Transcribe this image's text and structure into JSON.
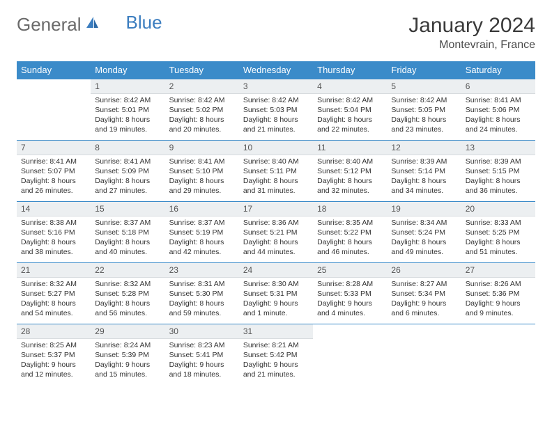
{
  "brand": {
    "general": "General",
    "blue": "Blue"
  },
  "title": "January 2024",
  "subtitle": "Montevrain, France",
  "colors": {
    "header_bg": "#3b8bc9",
    "header_text": "#ffffff",
    "daynum_bg": "#eceff1",
    "border": "#3b8bc9",
    "logo_blue": "#3b7dbf",
    "title_color": "#3a3a3a"
  },
  "day_headers": [
    "Sunday",
    "Monday",
    "Tuesday",
    "Wednesday",
    "Thursday",
    "Friday",
    "Saturday"
  ],
  "weeks": [
    [
      null,
      {
        "n": "1",
        "sr": "Sunrise: 8:42 AM",
        "ss": "Sunset: 5:01 PM",
        "d1": "Daylight: 8 hours",
        "d2": "and 19 minutes."
      },
      {
        "n": "2",
        "sr": "Sunrise: 8:42 AM",
        "ss": "Sunset: 5:02 PM",
        "d1": "Daylight: 8 hours",
        "d2": "and 20 minutes."
      },
      {
        "n": "3",
        "sr": "Sunrise: 8:42 AM",
        "ss": "Sunset: 5:03 PM",
        "d1": "Daylight: 8 hours",
        "d2": "and 21 minutes."
      },
      {
        "n": "4",
        "sr": "Sunrise: 8:42 AM",
        "ss": "Sunset: 5:04 PM",
        "d1": "Daylight: 8 hours",
        "d2": "and 22 minutes."
      },
      {
        "n": "5",
        "sr": "Sunrise: 8:42 AM",
        "ss": "Sunset: 5:05 PM",
        "d1": "Daylight: 8 hours",
        "d2": "and 23 minutes."
      },
      {
        "n": "6",
        "sr": "Sunrise: 8:41 AM",
        "ss": "Sunset: 5:06 PM",
        "d1": "Daylight: 8 hours",
        "d2": "and 24 minutes."
      }
    ],
    [
      {
        "n": "7",
        "sr": "Sunrise: 8:41 AM",
        "ss": "Sunset: 5:07 PM",
        "d1": "Daylight: 8 hours",
        "d2": "and 26 minutes."
      },
      {
        "n": "8",
        "sr": "Sunrise: 8:41 AM",
        "ss": "Sunset: 5:09 PM",
        "d1": "Daylight: 8 hours",
        "d2": "and 27 minutes."
      },
      {
        "n": "9",
        "sr": "Sunrise: 8:41 AM",
        "ss": "Sunset: 5:10 PM",
        "d1": "Daylight: 8 hours",
        "d2": "and 29 minutes."
      },
      {
        "n": "10",
        "sr": "Sunrise: 8:40 AM",
        "ss": "Sunset: 5:11 PM",
        "d1": "Daylight: 8 hours",
        "d2": "and 31 minutes."
      },
      {
        "n": "11",
        "sr": "Sunrise: 8:40 AM",
        "ss": "Sunset: 5:12 PM",
        "d1": "Daylight: 8 hours",
        "d2": "and 32 minutes."
      },
      {
        "n": "12",
        "sr": "Sunrise: 8:39 AM",
        "ss": "Sunset: 5:14 PM",
        "d1": "Daylight: 8 hours",
        "d2": "and 34 minutes."
      },
      {
        "n": "13",
        "sr": "Sunrise: 8:39 AM",
        "ss": "Sunset: 5:15 PM",
        "d1": "Daylight: 8 hours",
        "d2": "and 36 minutes."
      }
    ],
    [
      {
        "n": "14",
        "sr": "Sunrise: 8:38 AM",
        "ss": "Sunset: 5:16 PM",
        "d1": "Daylight: 8 hours",
        "d2": "and 38 minutes."
      },
      {
        "n": "15",
        "sr": "Sunrise: 8:37 AM",
        "ss": "Sunset: 5:18 PM",
        "d1": "Daylight: 8 hours",
        "d2": "and 40 minutes."
      },
      {
        "n": "16",
        "sr": "Sunrise: 8:37 AM",
        "ss": "Sunset: 5:19 PM",
        "d1": "Daylight: 8 hours",
        "d2": "and 42 minutes."
      },
      {
        "n": "17",
        "sr": "Sunrise: 8:36 AM",
        "ss": "Sunset: 5:21 PM",
        "d1": "Daylight: 8 hours",
        "d2": "and 44 minutes."
      },
      {
        "n": "18",
        "sr": "Sunrise: 8:35 AM",
        "ss": "Sunset: 5:22 PM",
        "d1": "Daylight: 8 hours",
        "d2": "and 46 minutes."
      },
      {
        "n": "19",
        "sr": "Sunrise: 8:34 AM",
        "ss": "Sunset: 5:24 PM",
        "d1": "Daylight: 8 hours",
        "d2": "and 49 minutes."
      },
      {
        "n": "20",
        "sr": "Sunrise: 8:33 AM",
        "ss": "Sunset: 5:25 PM",
        "d1": "Daylight: 8 hours",
        "d2": "and 51 minutes."
      }
    ],
    [
      {
        "n": "21",
        "sr": "Sunrise: 8:32 AM",
        "ss": "Sunset: 5:27 PM",
        "d1": "Daylight: 8 hours",
        "d2": "and 54 minutes."
      },
      {
        "n": "22",
        "sr": "Sunrise: 8:32 AM",
        "ss": "Sunset: 5:28 PM",
        "d1": "Daylight: 8 hours",
        "d2": "and 56 minutes."
      },
      {
        "n": "23",
        "sr": "Sunrise: 8:31 AM",
        "ss": "Sunset: 5:30 PM",
        "d1": "Daylight: 8 hours",
        "d2": "and 59 minutes."
      },
      {
        "n": "24",
        "sr": "Sunrise: 8:30 AM",
        "ss": "Sunset: 5:31 PM",
        "d1": "Daylight: 9 hours",
        "d2": "and 1 minute."
      },
      {
        "n": "25",
        "sr": "Sunrise: 8:28 AM",
        "ss": "Sunset: 5:33 PM",
        "d1": "Daylight: 9 hours",
        "d2": "and 4 minutes."
      },
      {
        "n": "26",
        "sr": "Sunrise: 8:27 AM",
        "ss": "Sunset: 5:34 PM",
        "d1": "Daylight: 9 hours",
        "d2": "and 6 minutes."
      },
      {
        "n": "27",
        "sr": "Sunrise: 8:26 AM",
        "ss": "Sunset: 5:36 PM",
        "d1": "Daylight: 9 hours",
        "d2": "and 9 minutes."
      }
    ],
    [
      {
        "n": "28",
        "sr": "Sunrise: 8:25 AM",
        "ss": "Sunset: 5:37 PM",
        "d1": "Daylight: 9 hours",
        "d2": "and 12 minutes."
      },
      {
        "n": "29",
        "sr": "Sunrise: 8:24 AM",
        "ss": "Sunset: 5:39 PM",
        "d1": "Daylight: 9 hours",
        "d2": "and 15 minutes."
      },
      {
        "n": "30",
        "sr": "Sunrise: 8:23 AM",
        "ss": "Sunset: 5:41 PM",
        "d1": "Daylight: 9 hours",
        "d2": "and 18 minutes."
      },
      {
        "n": "31",
        "sr": "Sunrise: 8:21 AM",
        "ss": "Sunset: 5:42 PM",
        "d1": "Daylight: 9 hours",
        "d2": "and 21 minutes."
      },
      null,
      null,
      null
    ]
  ]
}
